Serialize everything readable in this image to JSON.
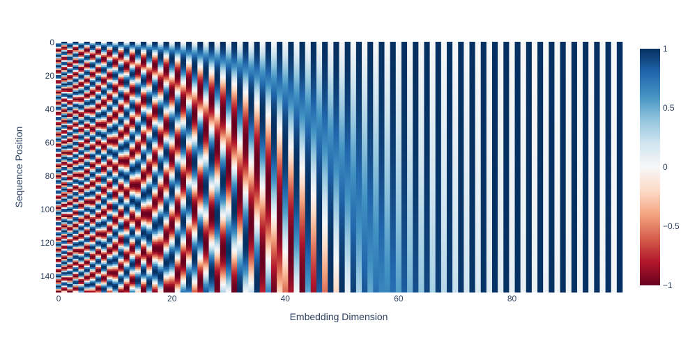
{
  "chart_data": {
    "type": "heatmap",
    "title": "",
    "xlabel": "Embedding Dimension",
    "ylabel": "Sequence Position",
    "x_range": [
      0,
      99
    ],
    "y_range": [
      0,
      149
    ],
    "y_reversed": true,
    "n_dims": 100,
    "n_positions": 150,
    "formula": "PE(pos, 2i) = sin(pos / 10000^(2i/100)); PE(pos, 2i+1) = cos(pos / 10000^(2i/100))",
    "z_range": [
      -1,
      1
    ],
    "x_ticks": [
      "0",
      "20",
      "40",
      "60",
      "80"
    ],
    "y_ticks": [
      "0",
      "20",
      "40",
      "60",
      "80",
      "100",
      "120",
      "140"
    ],
    "colorbar_ticks": [
      "1",
      "0.5",
      "0",
      "−0.5",
      "−1"
    ],
    "colorscale": [
      "#67001f",
      "#b2182b",
      "#d6604d",
      "#f4a582",
      "#fddbc7",
      "#f7f7f7",
      "#d1e5f0",
      "#92c5de",
      "#4393c3",
      "#2166ac",
      "#053061"
    ],
    "grid": false,
    "legend": "colorbar-right"
  }
}
